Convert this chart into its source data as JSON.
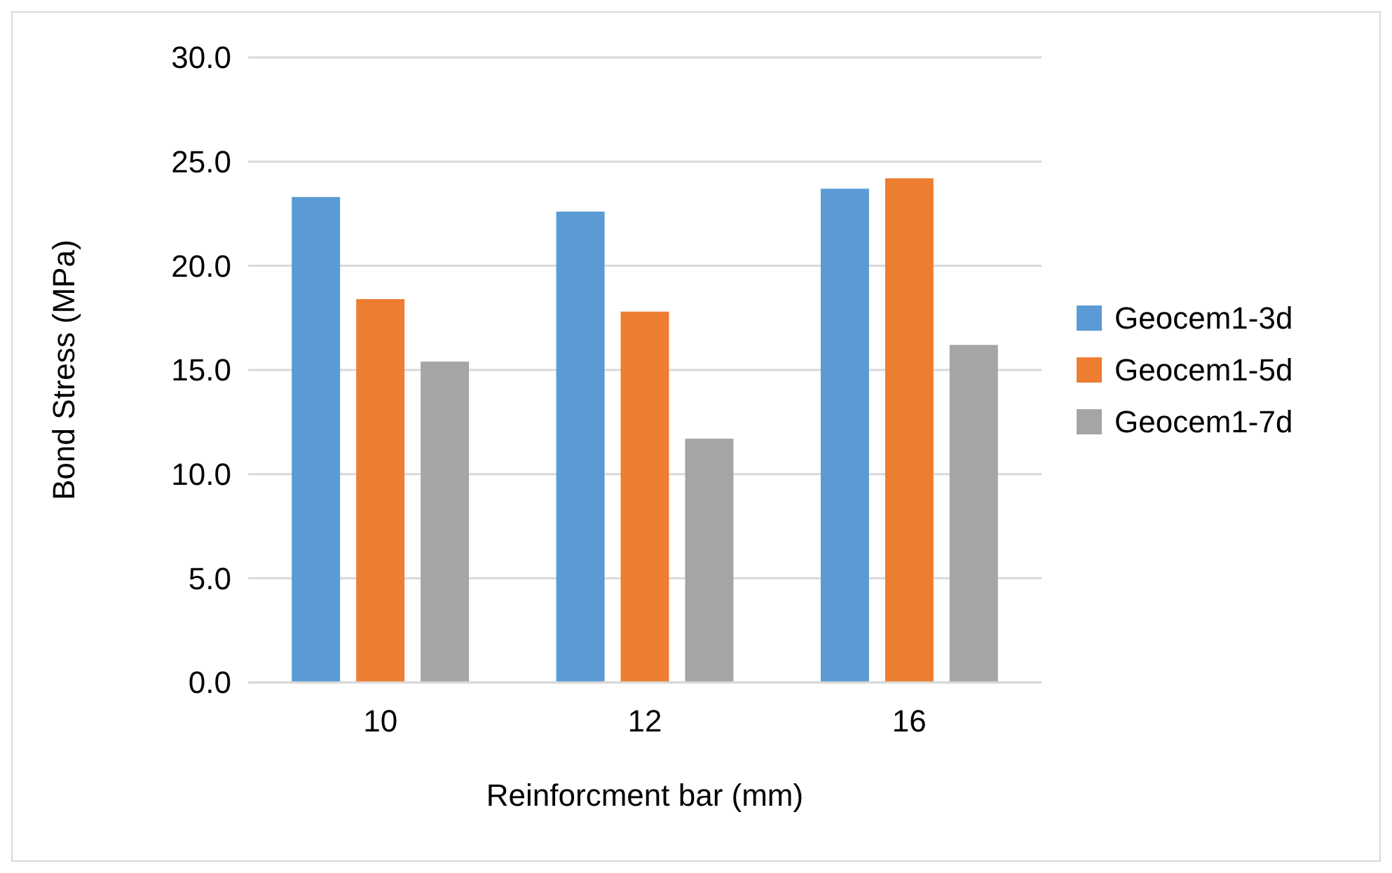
{
  "chart_data": {
    "type": "bar",
    "xlabel": "Reinforcment bar (mm)",
    "ylabel": "Bond Stress (MPa)",
    "categories": [
      "10",
      "12",
      "16"
    ],
    "series": [
      {
        "name": "Geocem1-3d",
        "color": "#5b9bd5",
        "values": [
          23.3,
          22.6,
          23.7
        ]
      },
      {
        "name": "Geocem1-5d",
        "color": "#ed7d31",
        "values": [
          18.4,
          17.8,
          24.2
        ]
      },
      {
        "name": "Geocem1-7d",
        "color": "#a5a5a5",
        "values": [
          15.4,
          11.7,
          16.2
        ]
      }
    ],
    "ylim": [
      0,
      30
    ],
    "yticks": [
      {
        "value": 0,
        "label": "0.0"
      },
      {
        "value": 5,
        "label": "5.0"
      },
      {
        "value": 10,
        "label": "10.0"
      },
      {
        "value": 15,
        "label": "15.0"
      },
      {
        "value": 20,
        "label": "20.0"
      },
      {
        "value": 25,
        "label": "25.0"
      },
      {
        "value": 30,
        "label": "30.0"
      }
    ],
    "grid": "y",
    "legend": "right"
  }
}
